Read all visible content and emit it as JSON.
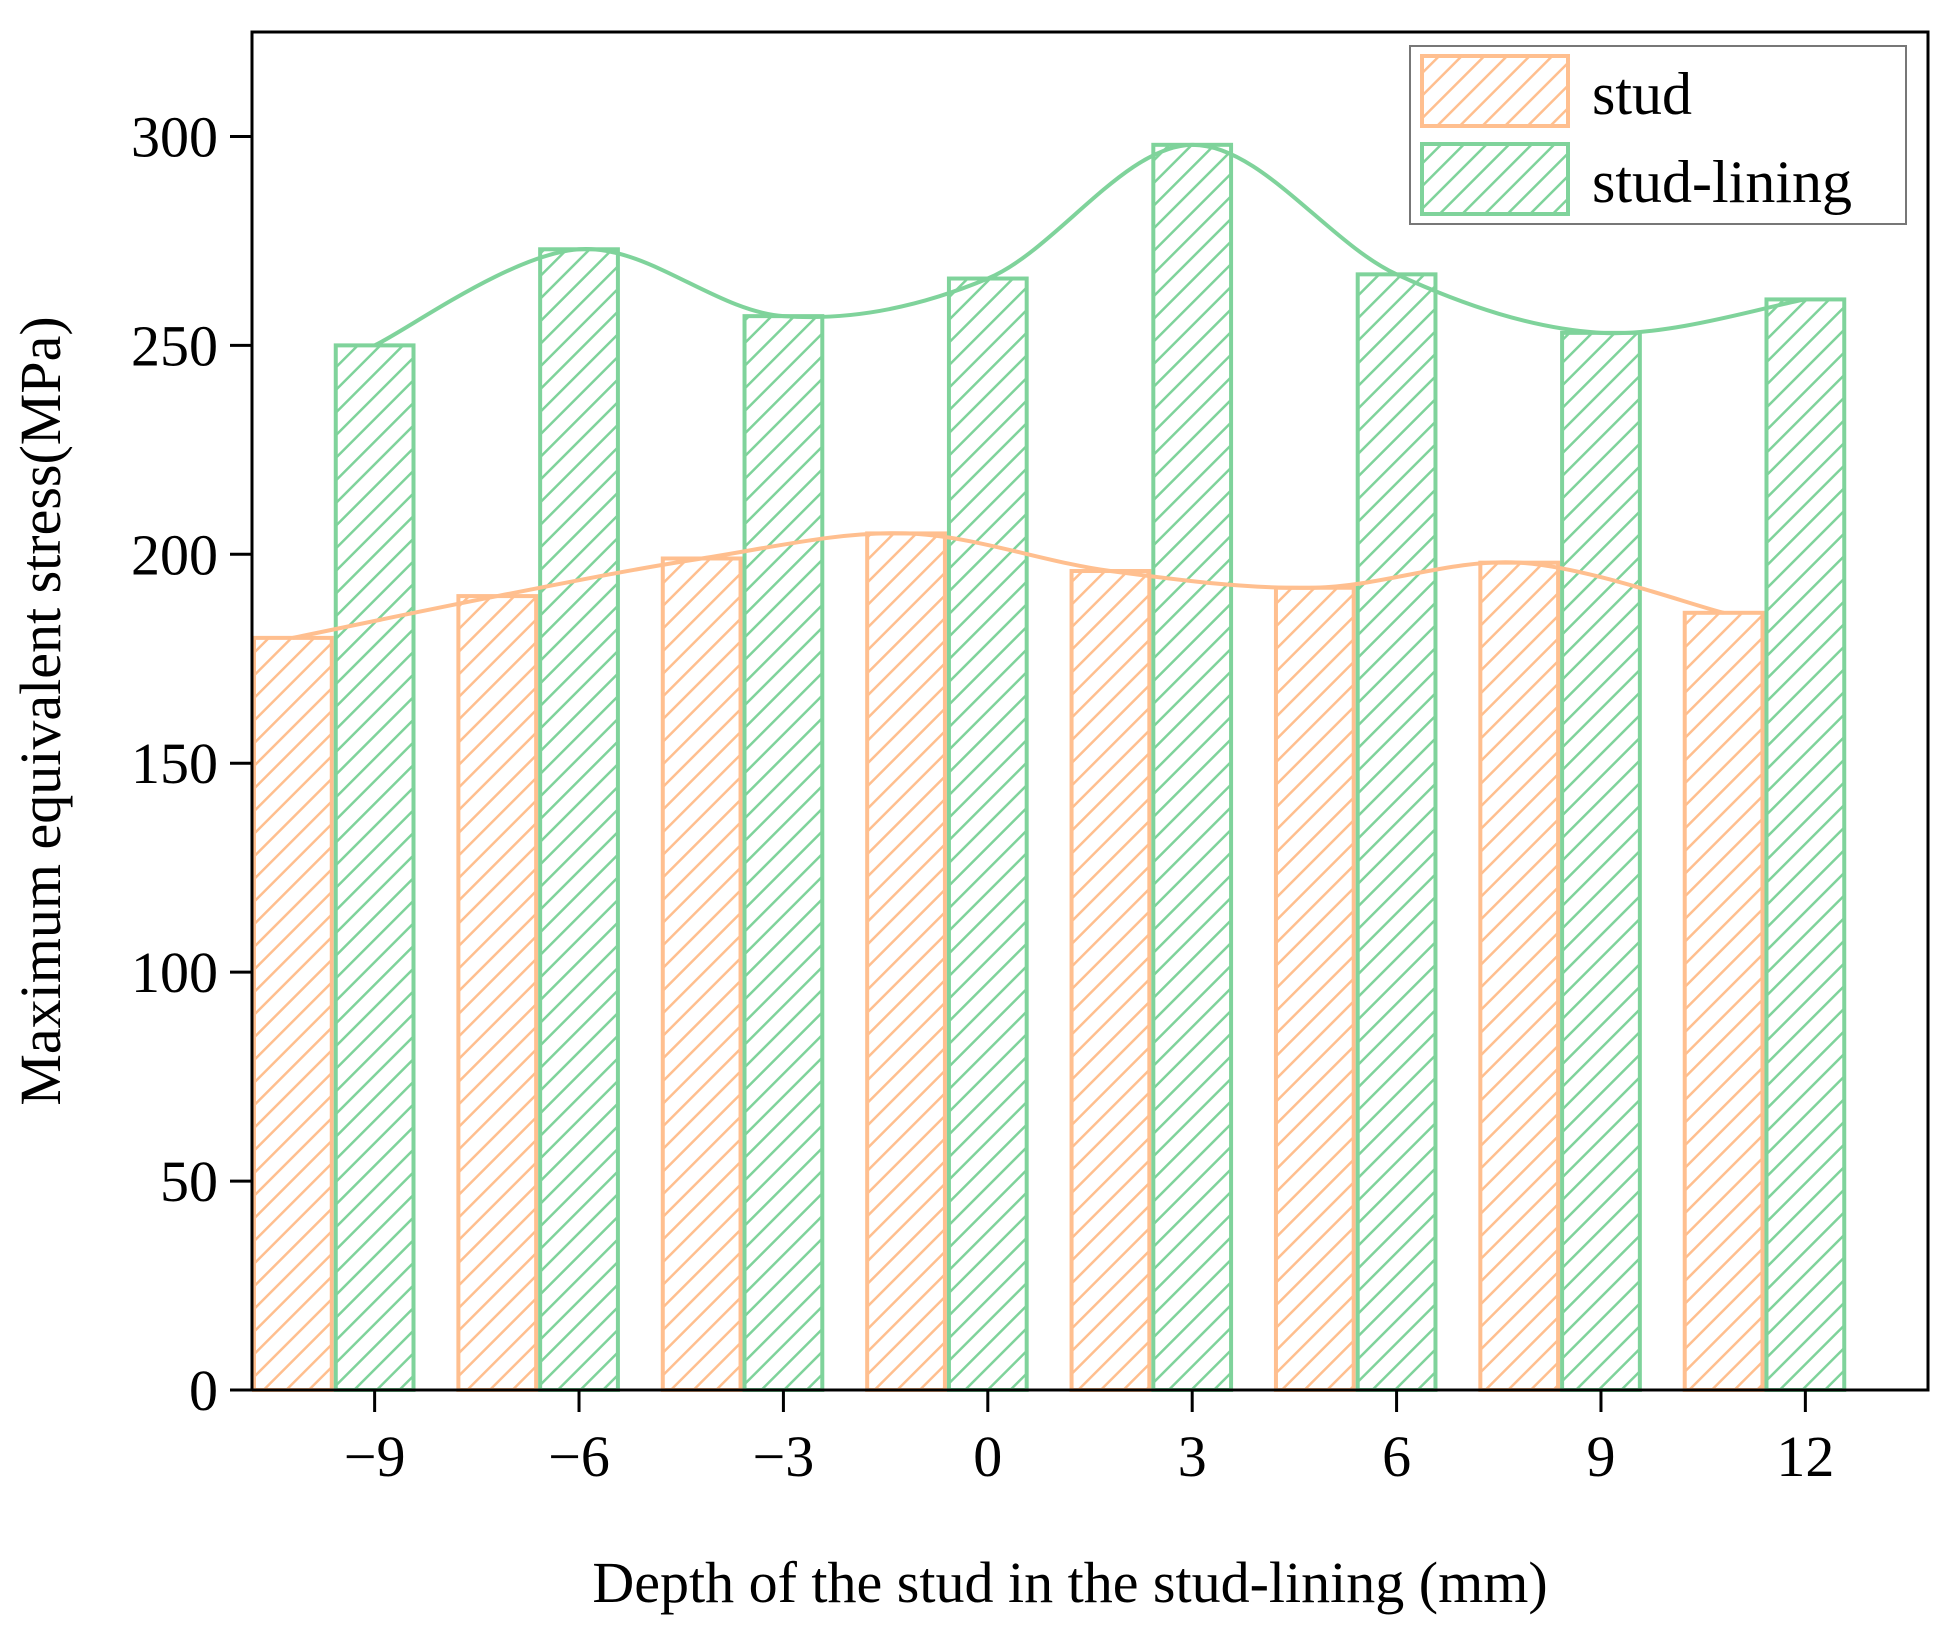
{
  "chart_data": {
    "type": "bar",
    "title": "",
    "xlabel": "Depth of the stud in the stud-lining (mm)",
    "ylabel": "Maximum equivalent stress(MPa)",
    "ylim": [
      0,
      325
    ],
    "xlim": [
      -10.8,
      13.8
    ],
    "yticks": [
      0,
      50,
      100,
      150,
      200,
      250,
      300
    ],
    "xticks": [
      -9,
      -6,
      -3,
      0,
      3,
      6,
      9,
      12
    ],
    "xtick_labels": [
      "−9",
      "−6",
      "−3",
      "0",
      "3",
      "6",
      "9",
      "12"
    ],
    "bar_width": 1.2,
    "legend_position": "top-right",
    "grid": false,
    "series": [
      {
        "name": "stud",
        "color": "#ffbf8f",
        "x_centers": [
          -10.2,
          -7.2,
          -4.2,
          -1.2,
          1.8,
          4.8,
          7.8,
          10.8
        ],
        "values": [
          180,
          190,
          199,
          205,
          196,
          192,
          198,
          186
        ],
        "trend_curve": true
      },
      {
        "name": "stud-lining",
        "color": "#7fd39b",
        "x_centers": [
          -9,
          -6,
          -3,
          0,
          3,
          6,
          9,
          12
        ],
        "values": [
          250,
          273,
          257,
          266,
          298,
          267,
          253,
          261
        ],
        "trend_curve": true
      }
    ]
  }
}
